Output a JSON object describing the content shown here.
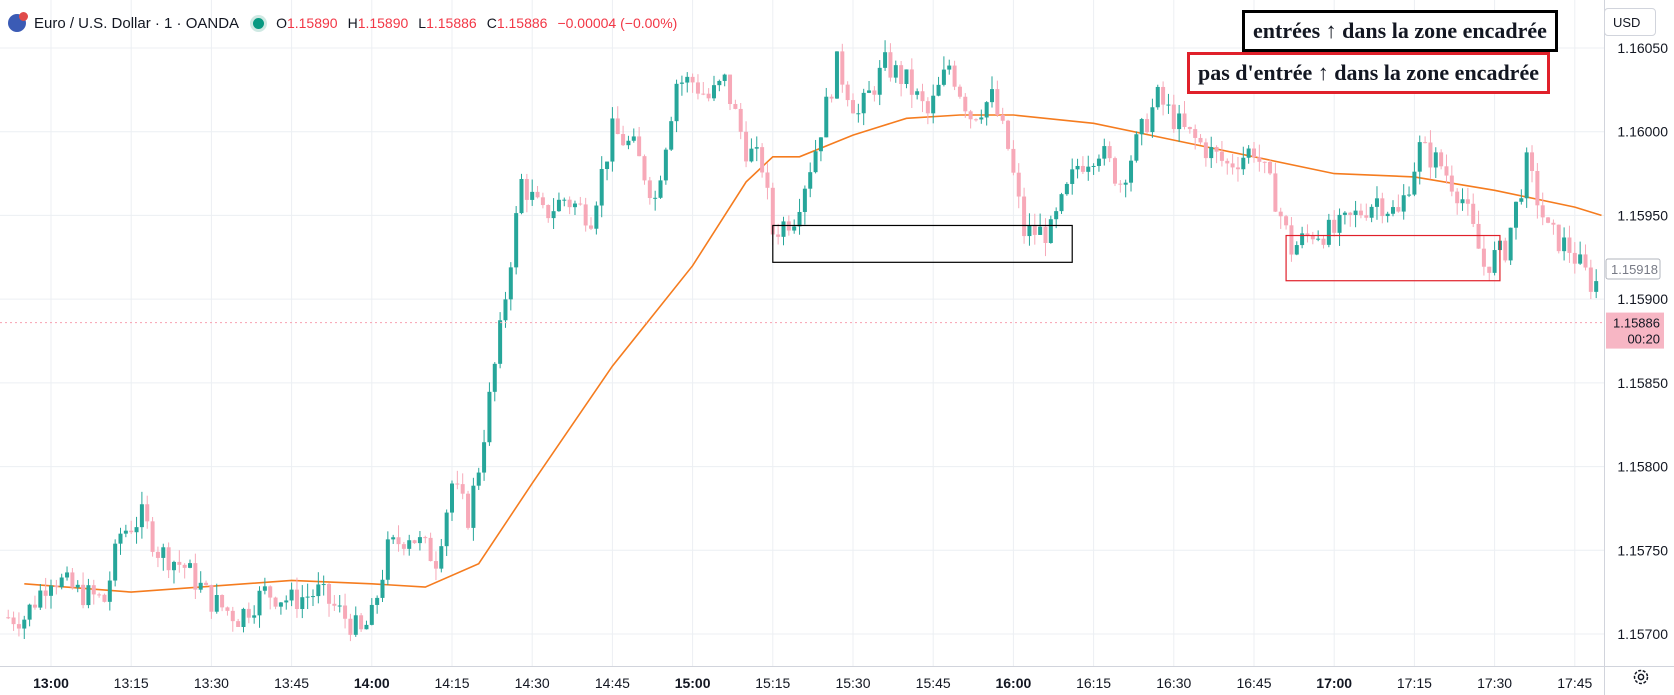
{
  "header": {
    "symbol": "Euro / U.S. Dollar · 1 · OANDA",
    "o_label": "O",
    "o_value": "1.15890",
    "h_label": "H",
    "h_value": "1.15890",
    "l_label": "L",
    "l_value": "1.15886",
    "c_label": "C",
    "c_value": "1.15886",
    "change": "−0.00004 (−0.00%)"
  },
  "annotations": {
    "entries": "entrées ↑ dans la zone encadrée",
    "no_entries": "pas d'entrée ↑ dans la zone encadrée"
  },
  "currency_button": "USD",
  "price_labels": {
    "last_marked": "1.15918",
    "current_price": "1.15886",
    "countdown": "00:20"
  },
  "colors": {
    "up": "#26a69a",
    "down": "#f7a9b8",
    "ma": "#f57c1f",
    "box_entries": "#000000",
    "box_no_entries": "#e0202a",
    "current_price_bg": "#f7b6c4"
  },
  "chart_data": {
    "type": "candlestick",
    "x_ticks": [
      "13:00",
      "13:15",
      "13:30",
      "13:45",
      "14:00",
      "14:15",
      "14:30",
      "14:45",
      "15:00",
      "15:15",
      "15:30",
      "15:45",
      "16:00",
      "16:15",
      "16:30",
      "16:45",
      "17:00",
      "17:15",
      "17:30",
      "17:45"
    ],
    "bold_ticks": [
      "13:00",
      "14:00",
      "15:00",
      "16:00",
      "17:00"
    ],
    "y_ticks": [
      "1.16050",
      "1.16000",
      "1.15950",
      "1.15900",
      "1.15850",
      "1.15800",
      "1.15750",
      "1.15700"
    ],
    "ylim": [
      1.15684,
      1.16069
    ],
    "grid": true,
    "series": [
      {
        "name": "EUR/USD 1m",
        "kind": "candles",
        "anchors": [
          [
            "12:55",
            1.1571
          ],
          [
            "13:00",
            1.15735
          ],
          [
            "13:05",
            1.15725
          ],
          [
            "13:10",
            1.1572
          ],
          [
            "13:13",
            1.1576
          ],
          [
            "13:17",
            1.1577
          ],
          [
            "13:20",
            1.1575
          ],
          [
            "13:25",
            1.1574
          ],
          [
            "13:30",
            1.1572
          ],
          [
            "13:35",
            1.1571
          ],
          [
            "13:40",
            1.15725
          ],
          [
            "13:45",
            1.1572
          ],
          [
            "13:50",
            1.15725
          ],
          [
            "13:55",
            1.1571
          ],
          [
            "13:58",
            1.157
          ],
          [
            "14:00",
            1.1571
          ],
          [
            "14:03",
            1.1575
          ],
          [
            "14:07",
            1.1576
          ],
          [
            "14:12",
            1.15745
          ],
          [
            "14:15",
            1.1579
          ],
          [
            "14:18",
            1.1577
          ],
          [
            "14:20",
            1.158
          ],
          [
            "14:24",
            1.1588
          ],
          [
            "14:28",
            1.1597
          ],
          [
            "14:32",
            1.1595
          ],
          [
            "14:36",
            1.1596
          ],
          [
            "14:41",
            1.1595
          ],
          [
            "14:45",
            1.16
          ],
          [
            "14:49",
            1.1599
          ],
          [
            "14:53",
            1.1596
          ],
          [
            "14:57",
            1.1603
          ],
          [
            "15:00",
            1.1603
          ],
          [
            "15:03",
            1.1602
          ],
          [
            "15:06",
            1.1603
          ],
          [
            "15:10",
            1.1599
          ],
          [
            "15:13",
            1.1598
          ],
          [
            "15:15",
            1.1594
          ],
          [
            "15:19",
            1.1595
          ],
          [
            "15:23",
            1.1599
          ],
          [
            "15:27",
            1.1604
          ],
          [
            "15:31",
            1.1601
          ],
          [
            "15:36",
            1.1604
          ],
          [
            "15:40",
            1.1603
          ],
          [
            "15:44",
            1.1601
          ],
          [
            "15:48",
            1.1604
          ],
          [
            "15:52",
            1.1601
          ],
          [
            "15:56",
            1.1602
          ],
          [
            "15:59",
            1.1599
          ],
          [
            "16:02",
            1.1594
          ],
          [
            "16:07",
            1.1594
          ],
          [
            "16:12",
            1.1598
          ],
          [
            "16:16",
            1.1599
          ],
          [
            "16:20",
            1.1597
          ],
          [
            "16:24",
            1.16
          ],
          [
            "16:27",
            1.1602
          ],
          [
            "16:32",
            1.16
          ],
          [
            "16:36",
            1.1599
          ],
          [
            "16:40",
            1.1598
          ],
          [
            "16:45",
            1.1599
          ],
          [
            "16:49",
            1.1596
          ],
          [
            "16:52",
            1.1593
          ],
          [
            "16:56",
            1.1594
          ],
          [
            "17:00",
            1.1594
          ],
          [
            "17:04",
            1.1595
          ],
          [
            "17:08",
            1.1596
          ],
          [
            "17:12",
            1.1595
          ],
          [
            "17:16",
            1.1599
          ],
          [
            "17:20",
            1.1598
          ],
          [
            "17:24",
            1.1596
          ],
          [
            "17:28",
            1.1592
          ],
          [
            "17:32",
            1.1593
          ],
          [
            "17:36",
            1.1598
          ],
          [
            "17:40",
            1.1594
          ],
          [
            "17:44",
            1.1593
          ],
          [
            "17:48",
            1.1591
          ]
        ]
      },
      {
        "name": "moving average",
        "kind": "line",
        "points": [
          [
            "12:55",
            1.1573
          ],
          [
            "13:15",
            1.15725
          ],
          [
            "13:45",
            1.15732
          ],
          [
            "14:00",
            1.1573
          ],
          [
            "14:10",
            1.15728
          ],
          [
            "14:20",
            1.15742
          ],
          [
            "14:30",
            1.1579
          ],
          [
            "14:45",
            1.1586
          ],
          [
            "15:00",
            1.1592
          ],
          [
            "15:10",
            1.1597
          ],
          [
            "15:15",
            1.15985
          ],
          [
            "15:20",
            1.15985
          ],
          [
            "15:30",
            1.15998
          ],
          [
            "15:40",
            1.16008
          ],
          [
            "15:50",
            1.1601
          ],
          [
            "16:00",
            1.1601
          ],
          [
            "16:15",
            1.16005
          ],
          [
            "16:30",
            1.15995
          ],
          [
            "16:45",
            1.15985
          ],
          [
            "17:00",
            1.15975
          ],
          [
            "17:15",
            1.15973
          ],
          [
            "17:30",
            1.15965
          ],
          [
            "17:45",
            1.15955
          ],
          [
            "17:50",
            1.1595
          ]
        ]
      }
    ],
    "zones": [
      {
        "label_ref": "entries",
        "time": [
          "15:15",
          "16:11"
        ],
        "price": [
          1.15944,
          1.15922
        ]
      },
      {
        "label_ref": "no_entries",
        "time": [
          "16:51",
          "17:31"
        ],
        "price": [
          1.15938,
          1.15911
        ]
      }
    ],
    "reference_line": 1.15886
  }
}
